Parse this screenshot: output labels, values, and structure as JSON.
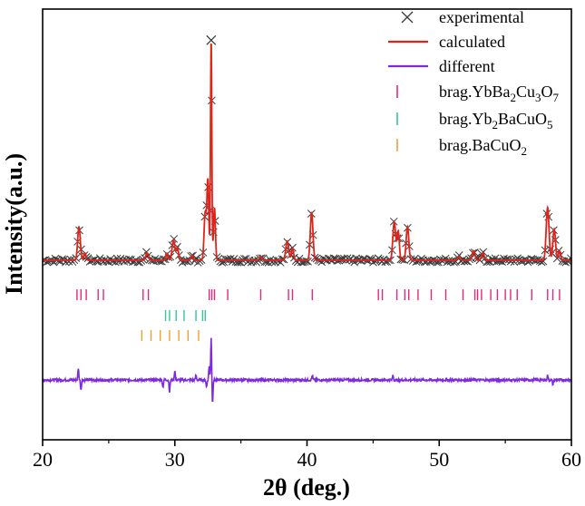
{
  "chart_data": {
    "type": "line",
    "title": "",
    "xlabel": "2θ (deg.)",
    "ylabel": "Intensity(a.u.)",
    "xlim": [
      20,
      60
    ],
    "ylim": [
      -0.75,
      1.05
    ],
    "xticks": [
      20,
      30,
      40,
      50,
      60
    ],
    "xtick_labels": [
      "20",
      "30",
      "40",
      "50",
      "60"
    ],
    "yticks_shown": false,
    "legend_position": "top-right",
    "peaks": [
      {
        "center": 22.75,
        "height": 0.14,
        "width": 0.14
      },
      {
        "center": 23.2,
        "height": 0.03,
        "width": 0.12
      },
      {
        "center": 27.9,
        "height": 0.03,
        "width": 0.15
      },
      {
        "center": 29.4,
        "height": 0.03,
        "width": 0.12
      },
      {
        "center": 29.9,
        "height": 0.085,
        "width": 0.15
      },
      {
        "center": 30.2,
        "height": 0.05,
        "width": 0.12
      },
      {
        "center": 31.3,
        "height": 0.02,
        "width": 0.12
      },
      {
        "center": 32.3,
        "height": 0.2,
        "width": 0.12
      },
      {
        "center": 32.5,
        "height": 0.33,
        "width": 0.1
      },
      {
        "center": 32.75,
        "height": 0.92,
        "width": 0.07
      },
      {
        "center": 33.0,
        "height": 0.22,
        "width": 0.1
      },
      {
        "center": 36.5,
        "height": 0.015,
        "width": 0.15
      },
      {
        "center": 38.5,
        "height": 0.08,
        "width": 0.15
      },
      {
        "center": 38.9,
        "height": 0.05,
        "width": 0.12
      },
      {
        "center": 40.35,
        "height": 0.2,
        "width": 0.14
      },
      {
        "center": 46.6,
        "height": 0.16,
        "width": 0.15
      },
      {
        "center": 46.9,
        "height": 0.12,
        "width": 0.12
      },
      {
        "center": 47.6,
        "height": 0.14,
        "width": 0.14
      },
      {
        "center": 51.5,
        "height": 0.015,
        "width": 0.15
      },
      {
        "center": 52.6,
        "height": 0.04,
        "width": 0.15
      },
      {
        "center": 53.3,
        "height": 0.03,
        "width": 0.15
      },
      {
        "center": 58.2,
        "height": 0.22,
        "width": 0.15
      },
      {
        "center": 58.7,
        "height": 0.13,
        "width": 0.14
      },
      {
        "center": 59.1,
        "height": 0.04,
        "width": 0.12
      }
    ],
    "difference_baseline": -0.5,
    "difference_spikes": [
      {
        "x": 22.7,
        "dy": 0.05
      },
      {
        "x": 22.9,
        "dy": -0.04
      },
      {
        "x": 29.1,
        "dy": -0.03
      },
      {
        "x": 29.6,
        "dy": -0.05
      },
      {
        "x": 30.0,
        "dy": 0.04
      },
      {
        "x": 31.6,
        "dy": 0.02
      },
      {
        "x": 32.4,
        "dy": -0.03
      },
      {
        "x": 32.6,
        "dy": 0.06
      },
      {
        "x": 32.75,
        "dy": 0.18
      },
      {
        "x": 32.85,
        "dy": -0.1
      },
      {
        "x": 40.4,
        "dy": 0.02
      },
      {
        "x": 46.5,
        "dy": 0.02
      },
      {
        "x": 58.2,
        "dy": 0.02
      },
      {
        "x": 58.6,
        "dy": -0.02
      }
    ],
    "series": [
      {
        "name": "experimental",
        "marker": "x",
        "color": "#3a3a3a"
      },
      {
        "name": "calculated",
        "color": "#e0241c"
      },
      {
        "name": "different",
        "color": "#7b2ae0"
      },
      {
        "name": "brag.YbBa2Cu3O7",
        "color": "#e8267a",
        "row": 0,
        "positions": [
          22.6,
          22.9,
          23.3,
          24.2,
          24.6,
          27.6,
          28.0,
          32.6,
          32.8,
          33.0,
          34.0,
          36.5,
          38.6,
          38.9,
          40.4,
          45.4,
          45.7,
          46.8,
          47.4,
          47.7,
          48.4,
          49.4,
          50.5,
          51.8,
          52.7,
          52.9,
          53.2,
          53.9,
          54.4,
          55.0,
          55.4,
          55.9,
          57.0,
          58.2,
          58.6,
          59.1
        ]
      },
      {
        "name": "brag.Yb2BaCuO5",
        "color": "#2ec89a",
        "row": 1,
        "positions": [
          29.3,
          29.6,
          30.1,
          30.7,
          31.6,
          32.1,
          32.3
        ]
      },
      {
        "name": "brag.BaCuO2",
        "color": "#f0a030",
        "row": 2,
        "positions": [
          27.5,
          28.2,
          28.9,
          29.6,
          30.3,
          31.0,
          31.8
        ]
      }
    ],
    "legend": [
      {
        "label": "experimental",
        "base": "experimental",
        "sub": []
      },
      {
        "label": "calculated",
        "base": "calculated",
        "sub": []
      },
      {
        "label": "different",
        "base": "different",
        "sub": []
      },
      {
        "label": "brag.YbBa2Cu3O7",
        "parts": [
          [
            "brag.YbBa",
            ""
          ],
          [
            "2",
            "sub"
          ],
          [
            "Cu",
            ""
          ],
          [
            "3",
            "sub"
          ],
          [
            "O",
            ""
          ],
          [
            "7",
            "sub"
          ]
        ]
      },
      {
        "label": "brag.Yb2BaCuO5",
        "parts": [
          [
            "brag.Yb",
            ""
          ],
          [
            "2",
            "sub"
          ],
          [
            "BaCuO",
            ""
          ],
          [
            "5",
            "sub"
          ]
        ]
      },
      {
        "label": "brag.BaCuO2",
        "parts": [
          [
            "brag.BaCuO",
            ""
          ],
          [
            "2",
            "sub"
          ]
        ]
      }
    ]
  }
}
